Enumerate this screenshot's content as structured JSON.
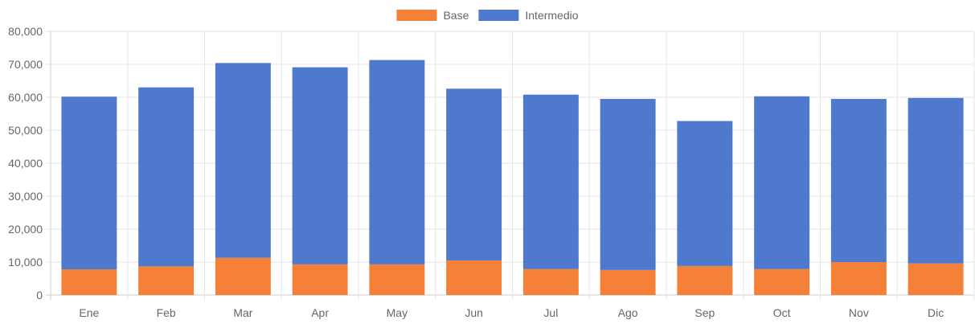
{
  "chart_data": {
    "type": "bar",
    "stacked": true,
    "categories": [
      "Ene",
      "Feb",
      "Mar",
      "Apr",
      "May",
      "Jun",
      "Jul",
      "Ago",
      "Sep",
      "Oct",
      "Nov",
      "Dic"
    ],
    "series": [
      {
        "name": "Base",
        "color": "#f58138",
        "values": [
          7800,
          8700,
          11300,
          9300,
          9300,
          10500,
          7900,
          7600,
          8800,
          7900,
          10000,
          9600
        ]
      },
      {
        "name": "Intermedio",
        "color": "#4e79cc",
        "values": [
          52400,
          54300,
          59100,
          59800,
          62000,
          52100,
          52900,
          51900,
          44000,
          52400,
          49500,
          50200
        ]
      }
    ],
    "y_ticks": [
      "0",
      "10,000",
      "20,000",
      "30,000",
      "40,000",
      "50,000",
      "60,000",
      "70,000",
      "80,000"
    ],
    "ylim": [
      0,
      80000
    ],
    "grid": true,
    "legend_position": "top-center",
    "title": "",
    "xlabel": "",
    "ylabel": ""
  }
}
